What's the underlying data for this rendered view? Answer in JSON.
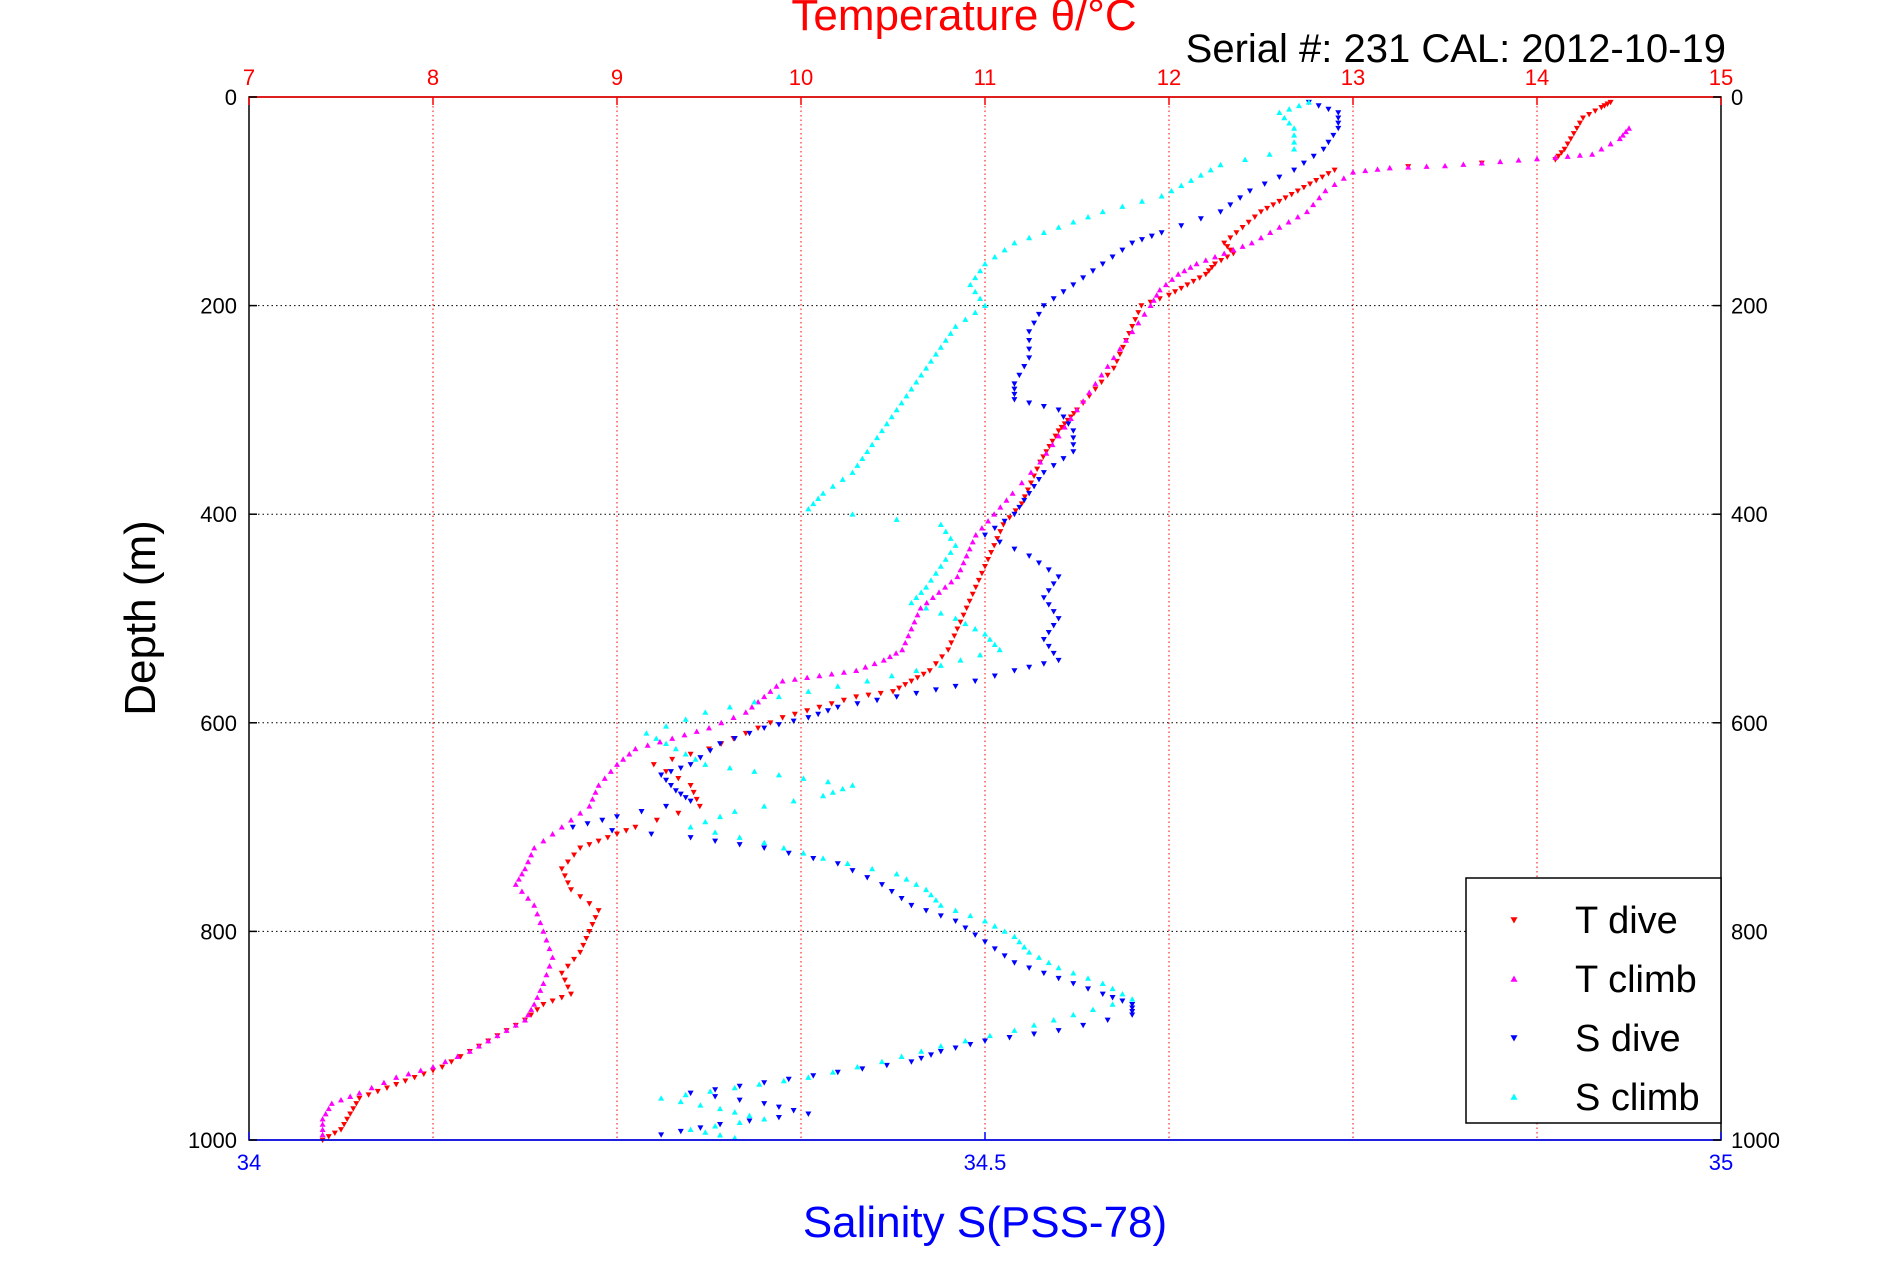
{
  "chart_data": {
    "type": "scatter",
    "title": "Temperature θ/°C",
    "subtitle": "Serial #: 231  CAL: 2012-10-19",
    "xlabel": "Salinity S(PSS-78)",
    "ylabel": "Depth (m)",
    "top_axis": {
      "range": [
        7,
        15
      ],
      "ticks": [
        "7",
        "8",
        "9",
        "10",
        "11",
        "12",
        "13",
        "14",
        "15"
      ],
      "color": "#ff0000"
    },
    "bottom_axis": {
      "range": [
        34,
        35
      ],
      "ticks": [
        "34",
        "34.5",
        "35"
      ],
      "color": "#0000ff"
    },
    "y_axis": {
      "range": [
        0,
        1000
      ],
      "reversed": true,
      "ticks": [
        "0",
        "200",
        "400",
        "600",
        "800",
        "1000"
      ]
    },
    "grid": true,
    "legend_position": "bottom-right",
    "series": [
      {
        "name": "T dive",
        "color": "#ff0000",
        "axis": "temperature",
        "marker": "down-triangle",
        "points": [
          [
            14.4,
            5
          ],
          [
            14.35,
            10
          ],
          [
            14.25,
            20
          ],
          [
            14.2,
            35
          ],
          [
            14.15,
            50
          ],
          [
            14.1,
            60
          ],
          [
            12.9,
            70
          ],
          [
            12.8,
            80
          ],
          [
            12.7,
            90
          ],
          [
            12.6,
            100
          ],
          [
            12.5,
            110
          ],
          [
            12.4,
            125
          ],
          [
            12.3,
            140
          ],
          [
            12.35,
            150
          ],
          [
            12.25,
            160
          ],
          [
            12.2,
            170
          ],
          [
            12.1,
            180
          ],
          [
            12.0,
            190
          ],
          [
            11.85,
            200
          ],
          [
            11.8,
            220
          ],
          [
            11.75,
            240
          ],
          [
            11.7,
            260
          ],
          [
            11.6,
            280
          ],
          [
            11.5,
            300
          ],
          [
            11.45,
            310
          ],
          [
            11.4,
            320
          ],
          [
            11.35,
            335
          ],
          [
            11.3,
            350
          ],
          [
            11.25,
            370
          ],
          [
            11.2,
            390
          ],
          [
            11.1,
            410
          ],
          [
            11.05,
            430
          ],
          [
            11.0,
            450
          ],
          [
            10.95,
            470
          ],
          [
            10.9,
            490
          ],
          [
            10.85,
            510
          ],
          [
            10.8,
            530
          ],
          [
            10.7,
            550
          ],
          [
            10.6,
            560
          ],
          [
            10.5,
            570
          ],
          [
            10.3,
            575
          ],
          [
            10.1,
            585
          ],
          [
            9.9,
            595
          ],
          [
            9.7,
            610
          ],
          [
            9.5,
            625
          ],
          [
            9.2,
            640
          ],
          [
            9.4,
            660
          ],
          [
            9.45,
            680
          ],
          [
            9.1,
            700
          ],
          [
            8.95,
            710
          ],
          [
            8.8,
            720
          ],
          [
            8.7,
            740
          ],
          [
            8.75,
            760
          ],
          [
            8.9,
            780
          ],
          [
            8.85,
            800
          ],
          [
            8.8,
            820
          ],
          [
            8.7,
            840
          ],
          [
            8.75,
            860
          ],
          [
            8.6,
            870
          ],
          [
            8.5,
            885
          ],
          [
            8.35,
            900
          ],
          [
            8.2,
            915
          ],
          [
            8.05,
            930
          ],
          [
            7.9,
            940
          ],
          [
            7.75,
            950
          ],
          [
            7.6,
            960
          ],
          [
            7.55,
            975
          ],
          [
            7.5,
            990
          ],
          [
            7.4,
            1000
          ]
        ]
      },
      {
        "name": "T climb",
        "color": "#ff00ff",
        "axis": "temperature",
        "marker": "up-triangle",
        "points": [
          [
            14.5,
            30
          ],
          [
            14.45,
            40
          ],
          [
            14.3,
            55
          ],
          [
            14.1,
            58
          ],
          [
            13.8,
            62
          ],
          [
            13.5,
            66
          ],
          [
            13.2,
            68
          ],
          [
            13.0,
            72
          ],
          [
            12.85,
            90
          ],
          [
            12.75,
            110
          ],
          [
            12.6,
            125
          ],
          [
            12.45,
            140
          ],
          [
            12.3,
            150
          ],
          [
            12.15,
            160
          ],
          [
            12.05,
            170
          ],
          [
            11.95,
            185
          ],
          [
            11.9,
            200
          ],
          [
            11.8,
            225
          ],
          [
            11.7,
            250
          ],
          [
            11.6,
            275
          ],
          [
            11.5,
            300
          ],
          [
            11.4,
            325
          ],
          [
            11.3,
            350
          ],
          [
            11.15,
            380
          ],
          [
            11.05,
            400
          ],
          [
            10.95,
            420
          ],
          [
            10.9,
            440
          ],
          [
            10.85,
            460
          ],
          [
            10.75,
            475
          ],
          [
            10.65,
            490
          ],
          [
            10.6,
            510
          ],
          [
            10.55,
            530
          ],
          [
            10.45,
            540
          ],
          [
            10.3,
            550
          ],
          [
            10.1,
            555
          ],
          [
            9.9,
            560
          ],
          [
            9.8,
            575
          ],
          [
            9.7,
            590
          ],
          [
            9.5,
            605
          ],
          [
            9.3,
            615
          ],
          [
            9.1,
            625
          ],
          [
            9.0,
            640
          ],
          [
            8.9,
            660
          ],
          [
            8.85,
            680
          ],
          [
            8.7,
            700
          ],
          [
            8.55,
            720
          ],
          [
            8.5,
            740
          ],
          [
            8.45,
            755
          ],
          [
            8.55,
            775
          ],
          [
            8.6,
            800
          ],
          [
            8.65,
            825
          ],
          [
            8.6,
            850
          ],
          [
            8.55,
            870
          ],
          [
            8.5,
            885
          ],
          [
            8.35,
            900
          ],
          [
            8.2,
            915
          ],
          [
            8.0,
            930
          ],
          [
            7.8,
            940
          ],
          [
            7.6,
            955
          ],
          [
            7.45,
            965
          ],
          [
            7.4,
            980
          ],
          [
            7.4,
            995
          ]
        ]
      },
      {
        "name": "S dive",
        "color": "#0000ff",
        "axis": "salinity",
        "marker": "down-triangle",
        "points": [
          [
            34.72,
            5
          ],
          [
            34.74,
            15
          ],
          [
            34.74,
            30
          ],
          [
            34.73,
            50
          ],
          [
            34.71,
            70
          ],
          [
            34.68,
            90
          ],
          [
            34.66,
            110
          ],
          [
            34.62,
            130
          ],
          [
            34.6,
            140
          ],
          [
            34.58,
            160
          ],
          [
            34.56,
            180
          ],
          [
            34.54,
            200
          ],
          [
            34.53,
            225
          ],
          [
            34.53,
            250
          ],
          [
            34.52,
            275
          ],
          [
            34.52,
            290
          ],
          [
            34.55,
            300
          ],
          [
            34.56,
            320
          ],
          [
            34.56,
            340
          ],
          [
            34.54,
            360
          ],
          [
            34.53,
            380
          ],
          [
            34.52,
            400
          ],
          [
            34.5,
            420
          ],
          [
            34.53,
            440
          ],
          [
            34.55,
            460
          ],
          [
            34.54,
            480
          ],
          [
            34.55,
            500
          ],
          [
            34.54,
            520
          ],
          [
            34.55,
            540
          ],
          [
            34.52,
            550
          ],
          [
            34.48,
            565
          ],
          [
            34.44,
            575
          ],
          [
            34.4,
            585
          ],
          [
            34.38,
            595
          ],
          [
            34.35,
            605
          ],
          [
            34.32,
            620
          ],
          [
            34.3,
            640
          ],
          [
            34.28,
            650
          ],
          [
            34.29,
            665
          ],
          [
            34.3,
            675
          ],
          [
            34.25,
            690
          ],
          [
            34.22,
            700
          ],
          [
            34.3,
            710
          ],
          [
            34.35,
            720
          ],
          [
            34.4,
            735
          ],
          [
            34.43,
            755
          ],
          [
            34.45,
            775
          ],
          [
            34.48,
            790
          ],
          [
            34.5,
            810
          ],
          [
            34.52,
            830
          ],
          [
            34.55,
            845
          ],
          [
            34.58,
            860
          ],
          [
            34.6,
            870
          ],
          [
            34.6,
            880
          ],
          [
            34.55,
            895
          ],
          [
            34.5,
            905
          ],
          [
            34.47,
            915
          ],
          [
            34.45,
            925
          ],
          [
            34.4,
            935
          ],
          [
            34.35,
            945
          ],
          [
            34.3,
            955
          ],
          [
            34.35,
            965
          ],
          [
            34.38,
            975
          ],
          [
            34.32,
            985
          ],
          [
            34.28,
            995
          ]
        ]
      },
      {
        "name": "S climb",
        "color": "#00ffff",
        "axis": "salinity",
        "marker": "up-triangle",
        "points": [
          [
            34.72,
            5
          ],
          [
            34.7,
            15
          ],
          [
            34.71,
            30
          ],
          [
            34.71,
            50
          ],
          [
            34.66,
            65
          ],
          [
            34.64,
            80
          ],
          [
            34.62,
            95
          ],
          [
            34.58,
            110
          ],
          [
            34.55,
            125
          ],
          [
            34.52,
            140
          ],
          [
            34.5,
            160
          ],
          [
            34.49,
            180
          ],
          [
            34.5,
            200
          ],
          [
            34.48,
            220
          ],
          [
            34.47,
            240
          ],
          [
            34.46,
            260
          ],
          [
            34.45,
            280
          ],
          [
            34.44,
            300
          ],
          [
            34.43,
            320
          ],
          [
            34.42,
            340
          ],
          [
            34.41,
            360
          ],
          [
            34.39,
            380
          ],
          [
            34.38,
            395
          ],
          [
            34.47,
            410
          ],
          [
            34.48,
            430
          ],
          [
            34.47,
            450
          ],
          [
            34.46,
            470
          ],
          [
            34.45,
            485
          ],
          [
            34.48,
            500
          ],
          [
            34.5,
            515
          ],
          [
            34.51,
            530
          ],
          [
            34.47,
            545
          ],
          [
            34.42,
            560
          ],
          [
            34.36,
            575
          ],
          [
            34.31,
            590
          ],
          [
            34.27,
            610
          ],
          [
            34.29,
            625
          ],
          [
            34.31,
            640
          ],
          [
            34.36,
            650
          ],
          [
            34.41,
            660
          ],
          [
            34.39,
            670
          ],
          [
            34.33,
            685
          ],
          [
            34.3,
            700
          ],
          [
            34.35,
            715
          ],
          [
            34.39,
            730
          ],
          [
            34.44,
            745
          ],
          [
            34.46,
            760
          ],
          [
            34.47,
            775
          ],
          [
            34.5,
            790
          ],
          [
            34.52,
            805
          ],
          [
            34.53,
            820
          ],
          [
            34.55,
            835
          ],
          [
            34.58,
            850
          ],
          [
            34.6,
            865
          ],
          [
            34.56,
            880
          ],
          [
            34.52,
            895
          ],
          [
            34.47,
            910
          ],
          [
            34.43,
            925
          ],
          [
            34.38,
            940
          ],
          [
            34.33,
            950
          ],
          [
            34.28,
            960
          ],
          [
            34.32,
            970
          ],
          [
            34.35,
            980
          ],
          [
            34.3,
            990
          ],
          [
            34.33,
            998
          ]
        ]
      }
    ]
  }
}
